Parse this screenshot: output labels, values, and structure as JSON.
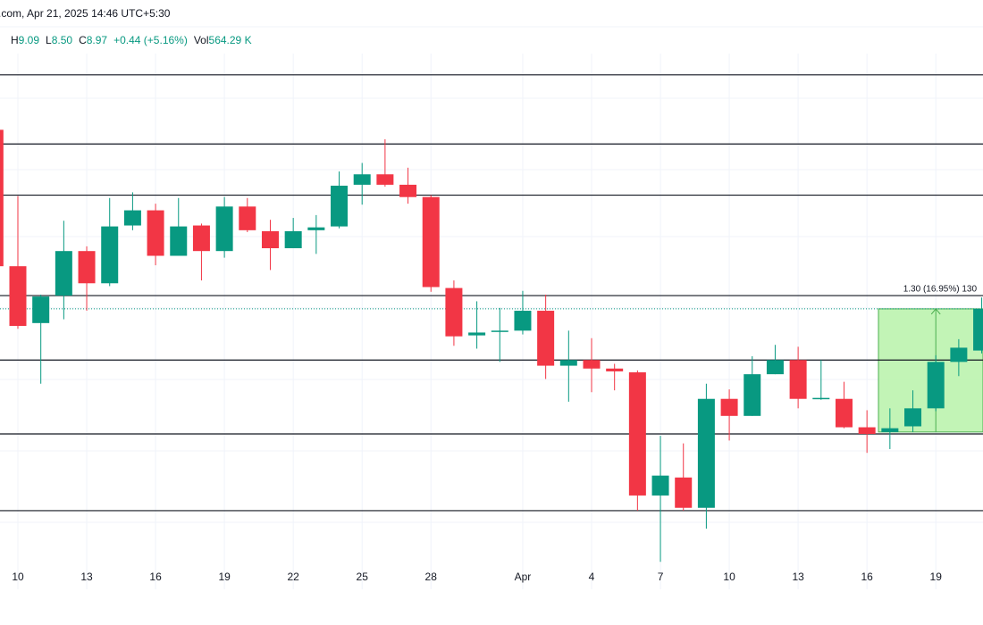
{
  "header": {
    "title": ".com, Apr 21, 2025 14:46 UTC+5:30",
    "ohlc": [
      {
        "key": "H",
        "text": "9.09"
      },
      {
        "key": "L",
        "text": "8.50"
      },
      {
        "key": "C",
        "text": "8.97"
      },
      {
        "key": "",
        "text": "+0.44 (+5.16%)"
      },
      {
        "key": "Vol",
        "text": "564.29 K"
      }
    ]
  },
  "chart_data": {
    "type": "candlestick",
    "categories": [
      null,
      "10",
      null,
      null,
      "13",
      null,
      null,
      "16",
      null,
      null,
      "19",
      null,
      null,
      "22",
      null,
      null,
      "25",
      null,
      null,
      "28",
      null,
      null,
      null,
      "Apr",
      null,
      null,
      "4",
      null,
      null,
      "7",
      null,
      null,
      "10",
      null,
      null,
      "13",
      null,
      null,
      "16",
      null,
      null,
      "19",
      null,
      null
    ],
    "open": [
      10.86,
      9.42,
      8.82,
      9.11,
      9.58,
      9.24,
      9.85,
      10.01,
      9.53,
      9.85,
      9.58,
      10.05,
      9.79,
      9.61,
      9.8,
      9.84,
      10.28,
      10.39,
      10.28,
      10.15,
      9.19,
      8.69,
      8.73,
      8.74,
      8.95,
      8.37,
      8.43,
      8.34,
      8.3,
      7.0,
      7.19,
      6.87,
      8.02,
      7.84,
      8.28,
      8.43,
      8.02,
      8.02,
      7.72,
      7.67,
      7.73,
      7.92,
      8.41,
      8.53
    ],
    "high": [
      10.91,
      10.16,
      9.12,
      9.9,
      9.63,
      10.14,
      10.2,
      10.08,
      10.14,
      9.87,
      10.15,
      10.14,
      9.91,
      9.93,
      9.96,
      10.42,
      10.51,
      10.76,
      10.46,
      10.17,
      9.27,
      9.05,
      8.98,
      9.16,
      9.12,
      8.74,
      8.66,
      8.39,
      8.32,
      7.63,
      7.55,
      8.18,
      8.12,
      8.47,
      8.59,
      8.57,
      8.43,
      8.2,
      7.9,
      7.92,
      8.11,
      8.48,
      8.65,
      9.09
    ],
    "low": [
      9.4,
      8.76,
      8.18,
      8.86,
      8.95,
      9.21,
      9.8,
      9.43,
      9.53,
      9.27,
      9.51,
      9.78,
      9.38,
      9.61,
      9.55,
      9.82,
      10.07,
      10.26,
      10.08,
      9.15,
      8.58,
      8.55,
      8.41,
      8.7,
      8.23,
      7.99,
      8.09,
      8.11,
      6.84,
      6.3,
      6.84,
      6.65,
      7.58,
      7.84,
      8.28,
      7.92,
      8.01,
      7.71,
      7.45,
      7.49,
      7.67,
      7.89,
      8.26,
      8.5
    ],
    "close": [
      9.42,
      8.79,
      9.1,
      9.58,
      9.24,
      9.84,
      10.01,
      9.53,
      9.84,
      9.58,
      10.05,
      9.8,
      9.61,
      9.79,
      9.83,
      10.27,
      10.39,
      10.28,
      10.15,
      9.2,
      8.68,
      8.72,
      8.74,
      8.95,
      8.37,
      8.43,
      8.34,
      8.31,
      7.0,
      7.21,
      6.87,
      8.02,
      7.84,
      8.28,
      8.43,
      8.02,
      8.03,
      7.72,
      7.65,
      7.71,
      7.92,
      8.41,
      8.56,
      8.97
    ],
    "up_color": "#089981",
    "down_color": "#f23645",
    "ylim": [
      6.01,
      12.23
    ],
    "levels": [
      11.44,
      10.71,
      10.17,
      9.11,
      8.43,
      7.65,
      6.84
    ],
    "level_color": "#131722",
    "grid": true,
    "measure": {
      "label": "1.30 (16.95%) 130",
      "low": 7.67,
      "high": 8.97,
      "color": "#b7f2a9"
    }
  }
}
